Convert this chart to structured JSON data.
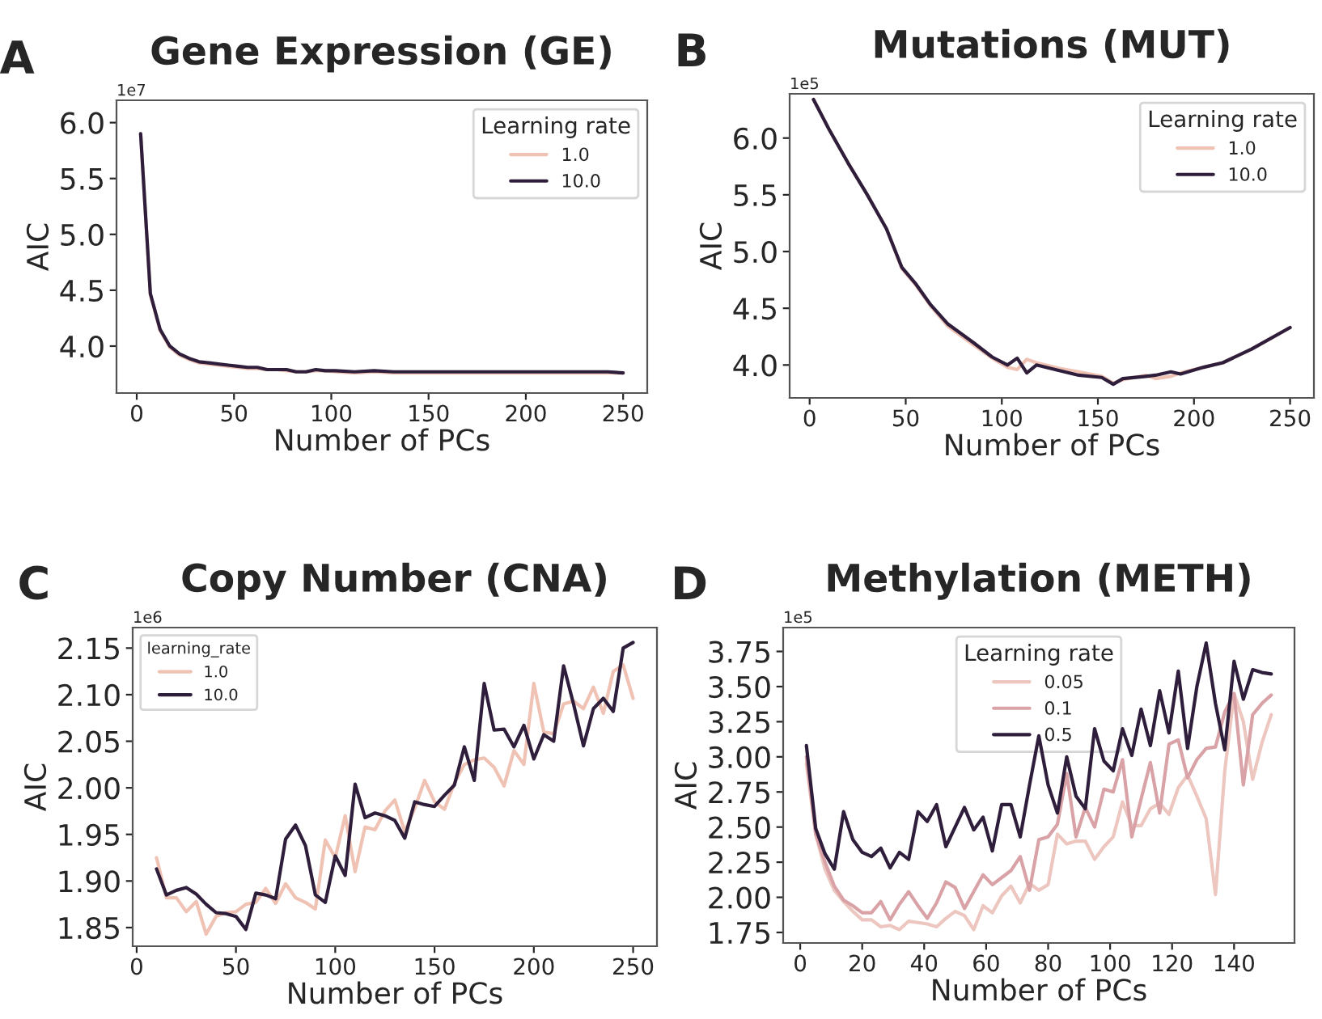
{
  "chart_data": [
    {
      "type": "line",
      "title": "Gene Expression (GE)",
      "xlabel": "Number of PCs",
      "ylabel": "AIC",
      "legend_title": "Learning rate",
      "legend": "top right",
      "grid": false,
      "annotations": [
        "A",
        "1e7"
      ],
      "xlim": [
        -10.4,
        262.4
      ],
      "xticks": [
        0,
        50,
        100,
        150,
        200,
        250
      ],
      "ylim": [
        3.58,
        6.2
      ],
      "yticks": [
        {
          "value": 4,
          "label": "4.0"
        },
        4.5,
        {
          "value": 5,
          "label": "5.0"
        },
        5.5,
        {
          "value": 6,
          "label": "6.0"
        }
      ],
      "x": [
        2,
        7,
        12,
        17,
        22,
        27,
        32,
        37,
        42,
        47,
        52,
        57,
        62,
        67,
        72,
        77,
        82,
        87,
        92,
        97,
        102,
        112,
        122,
        132,
        142,
        162,
        182,
        202,
        222,
        242,
        250
      ],
      "series": [
        {
          "name": "1.0",
          "color": "#efc2b4",
          "values": [
            5.9,
            4.46,
            4.14,
            3.99,
            3.92,
            3.88,
            3.85,
            3.84,
            3.83,
            3.82,
            3.81,
            3.8,
            3.8,
            3.79,
            3.79,
            3.78,
            3.77,
            3.77,
            3.78,
            3.78,
            3.77,
            3.76,
            3.77,
            3.76,
            3.76,
            3.76,
            3.76,
            3.76,
            3.76,
            3.76,
            3.76
          ]
        },
        {
          "name": "10.0",
          "color": "#2e1e3b",
          "values": [
            5.9,
            4.47,
            4.15,
            4.0,
            3.93,
            3.89,
            3.86,
            3.85,
            3.84,
            3.83,
            3.82,
            3.81,
            3.81,
            3.79,
            3.79,
            3.79,
            3.77,
            3.77,
            3.79,
            3.78,
            3.78,
            3.77,
            3.78,
            3.77,
            3.77,
            3.77,
            3.77,
            3.77,
            3.77,
            3.77,
            3.76
          ]
        }
      ]
    },
    {
      "type": "line",
      "title": "Mutations (MUT)",
      "xlabel": "Number of PCs",
      "ylabel": "AIC",
      "legend_title": "Learning rate",
      "legend": "top right",
      "grid": false,
      "annotations": [
        "B",
        "1e5"
      ],
      "xlim": [
        -10.4,
        262.4
      ],
      "xticks": [
        0,
        50,
        100,
        150,
        200,
        250
      ],
      "ylim": [
        3.71,
        6.39
      ],
      "yticks": [
        {
          "value": 4,
          "label": "4.0"
        },
        4.5,
        {
          "value": 5,
          "label": "5.0"
        },
        5.5,
        {
          "value": 6,
          "label": "6.0"
        }
      ],
      "x": [
        2,
        10,
        20,
        30,
        40,
        48,
        55,
        63,
        72,
        85,
        95,
        103,
        108,
        113,
        118,
        130,
        140,
        152,
        158,
        163,
        175,
        180,
        188,
        193,
        205,
        215,
        230,
        250
      ],
      "series": [
        {
          "name": "1.0",
          "color": "#efc2b4",
          "values": [
            6.34,
            6.08,
            5.78,
            5.5,
            5.2,
            4.85,
            4.71,
            4.52,
            4.34,
            4.18,
            4.06,
            3.98,
            3.96,
            4.05,
            4.02,
            3.97,
            3.94,
            3.9,
            3.84,
            3.87,
            3.91,
            3.88,
            3.9,
            3.93,
            3.98,
            4.02,
            4.14,
            4.33
          ]
        },
        {
          "name": "10.0",
          "color": "#2e1e3b",
          "values": [
            6.34,
            6.08,
            5.78,
            5.5,
            5.2,
            4.86,
            4.72,
            4.53,
            4.36,
            4.2,
            4.07,
            4.0,
            4.06,
            3.93,
            4.0,
            3.95,
            3.91,
            3.89,
            3.83,
            3.88,
            3.9,
            3.91,
            3.94,
            3.92,
            3.98,
            4.02,
            4.14,
            4.33
          ]
        }
      ]
    },
    {
      "type": "line",
      "title": "Copy Number (CNA)",
      "xlabel": "Number of PCs",
      "ylabel": "AIC",
      "legend_title": "learning_rate",
      "legend": "top left",
      "grid": false,
      "annotations": [
        "C",
        "1e6"
      ],
      "xlim": [
        -2,
        262
      ],
      "xticks": [
        0,
        50,
        100,
        150,
        200,
        250
      ],
      "ylim": [
        1.83,
        2.172
      ],
      "yticks": [
        1.85,
        {
          "value": 1.9,
          "label": "1.90"
        },
        1.95,
        {
          "value": 2.0,
          "label": "2.00"
        },
        2.05,
        {
          "value": 2.1,
          "label": "2.10"
        },
        2.15
      ],
      "x": [
        10,
        15,
        20,
        25,
        30,
        35,
        40,
        45,
        50,
        55,
        60,
        65,
        70,
        75,
        80,
        85,
        90,
        95,
        100,
        105,
        110,
        115,
        120,
        125,
        130,
        135,
        140,
        145,
        150,
        155,
        160,
        165,
        170,
        175,
        180,
        185,
        190,
        195,
        200,
        205,
        210,
        215,
        220,
        225,
        230,
        235,
        240,
        245,
        250
      ],
      "series": [
        {
          "name": "1.0",
          "color": "#efc2b4",
          "values": [
            1.925,
            1.882,
            1.882,
            1.867,
            1.878,
            1.843,
            1.862,
            1.866,
            1.867,
            1.875,
            1.877,
            1.892,
            1.876,
            1.897,
            1.882,
            1.877,
            1.87,
            1.944,
            1.925,
            1.97,
            1.91,
            1.958,
            1.955,
            1.975,
            1.987,
            1.953,
            1.978,
            2.008,
            1.985,
            1.977,
            2.005,
            2.025,
            2.03,
            2.032,
            2.022,
            2.002,
            2.04,
            2.025,
            2.112,
            2.06,
            2.058,
            2.09,
            2.093,
            2.085,
            2.108,
            2.08,
            2.125,
            2.132,
            2.096
          ]
        },
        {
          "name": "10.0",
          "color": "#2e1e3b",
          "values": [
            1.913,
            1.885,
            1.89,
            1.893,
            1.886,
            1.875,
            1.866,
            1.865,
            1.862,
            1.848,
            1.887,
            1.885,
            1.881,
            1.945,
            1.96,
            1.938,
            1.885,
            1.877,
            1.927,
            1.906,
            2.004,
            1.968,
            1.973,
            1.97,
            1.965,
            1.946,
            1.985,
            1.982,
            1.98,
            1.992,
            2.003,
            2.044,
            2.008,
            2.112,
            2.062,
            2.063,
            2.044,
            2.067,
            2.031,
            2.057,
            2.05,
            2.131,
            2.09,
            2.045,
            2.085,
            2.096,
            2.082,
            2.15,
            2.156
          ]
        }
      ]
    },
    {
      "type": "line",
      "title": "Methylation (METH)",
      "xlabel": "Number of PCs",
      "ylabel": "AIC",
      "legend_title": "Learning rate",
      "legend": "top",
      "grid": false,
      "annotations": [
        "D",
        "1e5"
      ],
      "xlim": [
        -5.5,
        159.5
      ],
      "xticks": [
        0,
        20,
        40,
        60,
        80,
        100,
        120,
        140
      ],
      "ylim": [
        1.675,
        3.92
      ],
      "yticks": [
        1.75,
        {
          "value": 2.0,
          "label": "2.00"
        },
        2.25,
        {
          "value": 2.5,
          "label": "2.50"
        },
        2.75,
        {
          "value": 3.0,
          "label": "3.00"
        },
        3.25,
        {
          "value": 3.5,
          "label": "3.50"
        },
        3.75
      ],
      "x": [
        2,
        5,
        8,
        11,
        14,
        17,
        20,
        23,
        26,
        29,
        32,
        35,
        38,
        41,
        44,
        47,
        50,
        53,
        56,
        59,
        62,
        65,
        68,
        71,
        74,
        77,
        80,
        83,
        86,
        89,
        92,
        95,
        98,
        101,
        104,
        107,
        110,
        113,
        116,
        119,
        122,
        125,
        128,
        131,
        134,
        137,
        140,
        143,
        146,
        149,
        152
      ],
      "series": [
        {
          "name": "0.05",
          "color": "#ecc6bf",
          "values": [
            2.95,
            2.45,
            2.2,
            2.05,
            1.97,
            1.9,
            1.84,
            1.84,
            1.79,
            1.8,
            1.77,
            1.83,
            1.82,
            1.81,
            1.79,
            1.85,
            1.9,
            1.87,
            1.77,
            1.94,
            1.89,
            2.01,
            2.08,
            1.96,
            2.1,
            2.05,
            2.09,
            2.45,
            2.38,
            2.4,
            2.4,
            2.27,
            2.36,
            2.43,
            2.68,
            2.51,
            2.51,
            2.63,
            2.67,
            2.59,
            2.78,
            2.87,
            2.72,
            2.56,
            2.02,
            2.9,
            3.45,
            3.25,
            2.84,
            3.1,
            3.3
          ]
        },
        {
          "name": "0.1",
          "color": "#d9a2a6",
          "values": [
            3.0,
            2.45,
            2.25,
            2.08,
            1.98,
            1.94,
            1.89,
            1.89,
            1.97,
            1.84,
            1.95,
            2.04,
            1.94,
            1.85,
            1.96,
            2.11,
            2.07,
            1.92,
            2.04,
            2.16,
            2.09,
            2.14,
            2.19,
            2.29,
            2.05,
            2.41,
            2.43,
            2.52,
            2.88,
            2.43,
            2.64,
            2.5,
            2.77,
            2.75,
            2.98,
            2.43,
            2.7,
            2.96,
            2.6,
            3.09,
            3.12,
            2.85,
            2.98,
            3.06,
            3.07,
            3.32,
            3.45,
            2.8,
            3.3,
            3.38,
            3.44
          ]
        },
        {
          "name": "0.5",
          "color": "#2e1e3b",
          "values": [
            3.08,
            2.49,
            2.31,
            2.2,
            2.61,
            2.41,
            2.32,
            2.29,
            2.35,
            2.21,
            2.32,
            2.27,
            2.61,
            2.54,
            2.66,
            2.36,
            2.5,
            2.64,
            2.48,
            2.57,
            2.33,
            2.66,
            2.66,
            2.43,
            2.8,
            3.15,
            2.8,
            2.6,
            3.0,
            2.72,
            2.63,
            3.2,
            2.97,
            2.9,
            3.2,
            3.01,
            3.34,
            3.08,
            3.47,
            3.17,
            3.61,
            3.06,
            3.5,
            3.81,
            3.38,
            3.05,
            3.68,
            3.41,
            3.62,
            3.6,
            3.59
          ]
        }
      ]
    }
  ]
}
